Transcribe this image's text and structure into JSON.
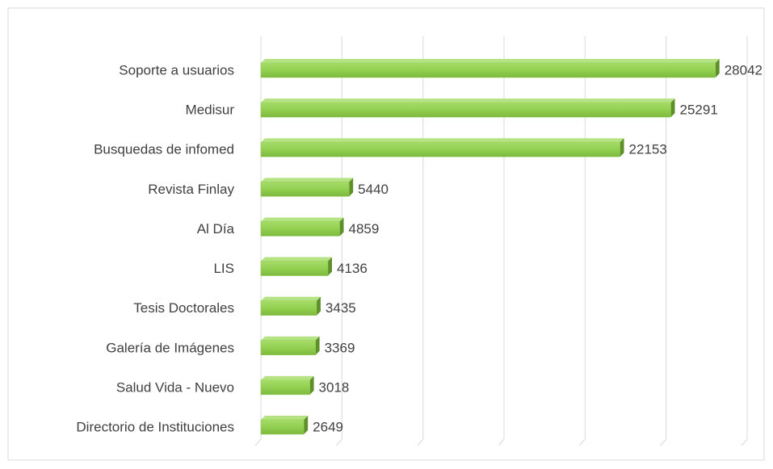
{
  "chart_data": {
    "type": "bar",
    "orientation": "horizontal",
    "categories": [
      "Soporte a usuarios",
      "Medisur",
      "Busquedas de infomed",
      "Revista Finlay",
      "Al Día",
      "LIS",
      "Tesis Doctorales",
      "Galería de Imágenes",
      "Salud Vida - Nuevo",
      "Directorio de Instituciones"
    ],
    "values": [
      28042,
      25291,
      22153,
      5440,
      4859,
      4136,
      3435,
      3369,
      3018,
      2649
    ],
    "color": "#92d050",
    "xlim": [
      0,
      30000
    ],
    "xticks": [
      0,
      5000,
      10000,
      15000,
      20000,
      25000,
      30000
    ],
    "grid": true
  }
}
